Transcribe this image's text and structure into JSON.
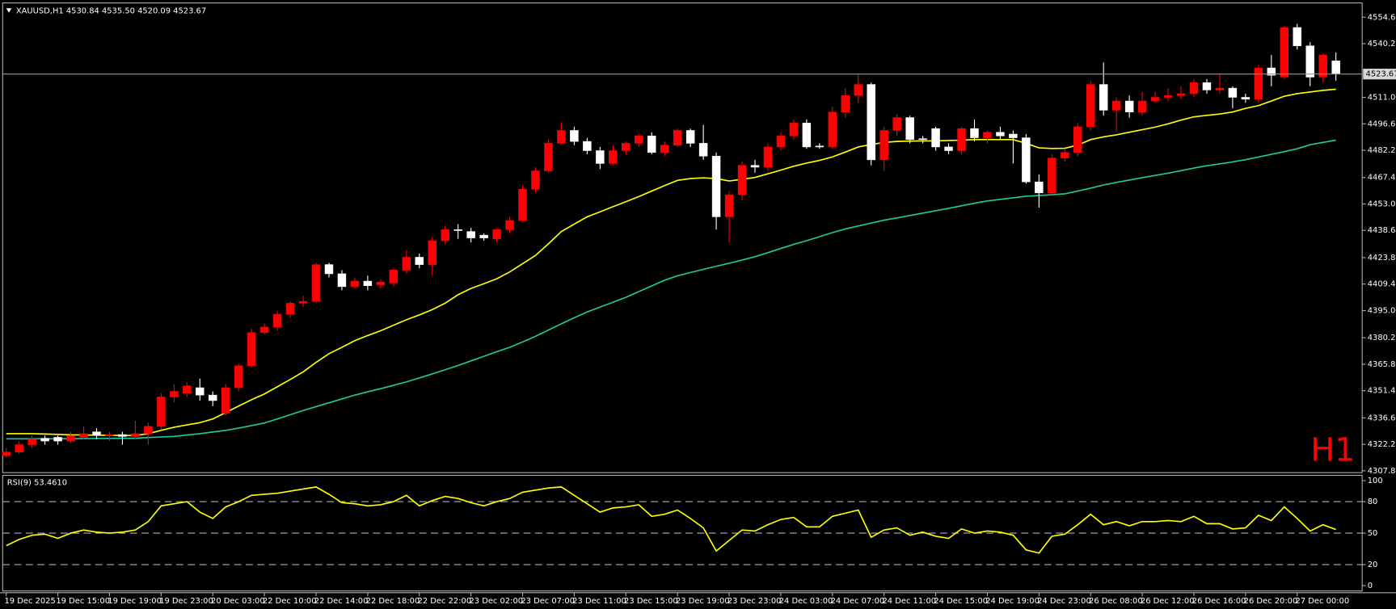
{
  "chart_data": [
    {
      "type": "candlestick",
      "title": "XAUUSD,H1  4530.84 4535.50 4520.09 4523.67",
      "watermark": "H1",
      "up_color": "#ff0000",
      "down_color": "#ffffff",
      "ylim": [
        4306.8,
        4561.4
      ],
      "yticks": [
        {
          "value": 4554.6,
          "label": "4554.60"
        },
        {
          "value": 4540.2,
          "label": "4540.20"
        },
        {
          "value": 4511.0,
          "label": "4511.00"
        },
        {
          "value": 4496.6,
          "label": "4496.60"
        },
        {
          "value": 4482.2,
          "label": "4482.20"
        },
        {
          "value": 4467.4,
          "label": "4467.40"
        },
        {
          "value": 4453.0,
          "label": "4453.00"
        },
        {
          "value": 4438.6,
          "label": "4438.60"
        },
        {
          "value": 4423.8,
          "label": "4423.80"
        },
        {
          "value": 4409.4,
          "label": "4409.40"
        },
        {
          "value": 4395.0,
          "label": "4395.00"
        },
        {
          "value": 4380.2,
          "label": "4380.20"
        },
        {
          "value": 4365.8,
          "label": "4365.80"
        },
        {
          "value": 4351.4,
          "label": "4351.40"
        },
        {
          "value": 4336.6,
          "label": "4336.60"
        },
        {
          "value": 4322.2,
          "label": "4322.20"
        },
        {
          "value": 4307.8,
          "label": "4307.80"
        }
      ],
      "price_line": {
        "value": 4523.67,
        "label": "4523.67",
        "color": "#8a9aa8"
      },
      "categories": [
        "19 Dec 2025",
        null,
        null,
        null,
        "19 Dec 15:00",
        null,
        null,
        null,
        "19 Dec 19:00",
        null,
        null,
        null,
        "19 Dec 23:00",
        null,
        null,
        null,
        "20 Dec 03:00",
        null,
        null,
        null,
        "22 Dec 10:00",
        null,
        null,
        null,
        "22 Dec 14:00",
        null,
        null,
        null,
        "22 Dec 18:00",
        null,
        null,
        null,
        "22 Dec 22:00",
        null,
        null,
        null,
        "23 Dec 02:00",
        null,
        null,
        null,
        "23 Dec 07:00",
        null,
        null,
        null,
        "23 Dec 11:00",
        null,
        null,
        null,
        "23 Dec 15:00",
        null,
        null,
        null,
        "23 Dec 19:00",
        null,
        null,
        null,
        "23 Dec 23:00",
        null,
        null,
        null,
        "24 Dec 03:00",
        null,
        null,
        null,
        "24 Dec 07:00",
        null,
        null,
        null,
        "24 Dec 11:00",
        null,
        null,
        null,
        "24 Dec 15:00",
        null,
        null,
        null,
        "24 Dec 19:00",
        null,
        null,
        null,
        "24 Dec 23:00",
        null,
        null,
        null,
        "26 Dec 08:00",
        null,
        null,
        null,
        "26 Dec 12:00",
        null,
        null,
        null,
        "26 Dec 16:00",
        null,
        null,
        null,
        "26 Dec 20:00",
        null,
        null,
        null,
        "27 Dec 00:00",
        null,
        null,
        null
      ],
      "candles": [
        [
          4316,
          4320,
          4315,
          4318
        ],
        [
          4318,
          4324,
          4317,
          4322
        ],
        [
          4322,
          4327,
          4320,
          4325
        ],
        [
          4325.5,
          4327,
          4322,
          4324
        ],
        [
          4326,
          4327,
          4322,
          4324
        ],
        [
          4324,
          4329,
          4323,
          4327
        ],
        [
          4326,
          4332,
          4325,
          4328
        ],
        [
          4329,
          4331,
          4325,
          4327
        ],
        [
          4327,
          4329,
          4324,
          4327.5
        ],
        [
          4327.5,
          4329,
          4322,
          4326.5
        ],
        [
          4326.5,
          4335,
          4325,
          4328
        ],
        [
          4328,
          4334,
          4322,
          4332
        ],
        [
          4332,
          4350,
          4330,
          4348
        ],
        [
          4348,
          4355,
          4345,
          4351
        ],
        [
          4350,
          4356,
          4348,
          4354
        ],
        [
          4353,
          4358,
          4346,
          4349
        ],
        [
          4349,
          4351,
          4343,
          4346
        ],
        [
          4339,
          4355,
          4338,
          4353
        ],
        [
          4353,
          4366,
          4351,
          4365
        ],
        [
          4365,
          4385,
          4364,
          4383
        ],
        [
          4383,
          4388,
          4382,
          4386
        ],
        [
          4386,
          4395,
          4384,
          4393
        ],
        [
          4393,
          4400,
          4391,
          4399
        ],
        [
          4399,
          4403,
          4397,
          4400
        ],
        [
          4400,
          4421,
          4399,
          4420
        ],
        [
          4420,
          4421,
          4413,
          4415
        ],
        [
          4415,
          4417,
          4406,
          4408
        ],
        [
          4408,
          4413,
          4407,
          4411
        ],
        [
          4411,
          4414,
          4406,
          4408.5
        ],
        [
          4409,
          4412,
          4407,
          4410.5
        ],
        [
          4410,
          4418,
          4408,
          4417
        ],
        [
          4417,
          4428,
          4415,
          4424
        ],
        [
          4424,
          4426,
          4418,
          4420
        ],
        [
          4420,
          4435,
          4414,
          4433
        ],
        [
          4433,
          4441,
          4431,
          4439
        ],
        [
          4439,
          4442,
          4434,
          4438.5
        ],
        [
          4438,
          4440,
          4432,
          4434.5
        ],
        [
          4436,
          4437,
          4433,
          4434.5
        ],
        [
          4434,
          4440,
          4432,
          4439
        ],
        [
          4439,
          4446,
          4437,
          4444
        ],
        [
          4444,
          4463,
          4443,
          4461
        ],
        [
          4461,
          4473,
          4459,
          4471
        ],
        [
          4471,
          4488,
          4470,
          4486
        ],
        [
          4486,
          4497,
          4485,
          4493
        ],
        [
          4493,
          4495,
          4485,
          4487
        ],
        [
          4487,
          4489,
          4480,
          4482
        ],
        [
          4482,
          4484,
          4472,
          4475
        ],
        [
          4475,
          4485,
          4474,
          4482
        ],
        [
          4482,
          4487,
          4480,
          4486
        ],
        [
          4486,
          4491,
          4484,
          4490
        ],
        [
          4490,
          4492,
          4480,
          4481
        ],
        [
          4481,
          4487,
          4479,
          4485
        ],
        [
          4485,
          4494,
          4484,
          4493
        ],
        [
          4493,
          4494,
          4484,
          4486
        ],
        [
          4486,
          4496,
          4477,
          4479
        ],
        [
          4479,
          4481,
          4439,
          4446
        ],
        [
          4446,
          4460,
          4432,
          4458
        ],
        [
          4458,
          4476,
          4455,
          4474
        ],
        [
          4474,
          4477,
          4470,
          4473
        ],
        [
          4473,
          4486,
          4471,
          4484
        ],
        [
          4484,
          4492,
          4482,
          4490
        ],
        [
          4490,
          4499,
          4488,
          4497
        ],
        [
          4497,
          4499,
          4483,
          4484
        ],
        [
          4484.5,
          4486,
          4483,
          4484
        ],
        [
          4484,
          4506,
          4483,
          4503
        ],
        [
          4503,
          4516,
          4500,
          4512
        ],
        [
          4512,
          4524,
          4508,
          4518
        ],
        [
          4518,
          4519,
          4474,
          4477
        ],
        [
          4477,
          4495,
          4471,
          4493
        ],
        [
          4493,
          4502,
          4490,
          4500
        ],
        [
          4500,
          4501,
          4486,
          4488
        ],
        [
          4488.5,
          4490,
          4486,
          4488
        ],
        [
          4494,
          4495,
          4482,
          4484
        ],
        [
          4484,
          4486,
          4480,
          4482
        ],
        [
          4482,
          4495,
          4480,
          4494
        ],
        [
          4494,
          4499,
          4487,
          4489
        ],
        [
          4489,
          4493,
          4486,
          4492
        ],
        [
          4492,
          4495,
          4488,
          4490
        ],
        [
          4491,
          4493,
          4475,
          4489
        ],
        [
          4489,
          4491,
          4464,
          4465
        ],
        [
          4465,
          4469,
          4451,
          4459
        ],
        [
          4459,
          4480,
          4458,
          4478
        ],
        [
          4478,
          4483,
          4476,
          4481
        ],
        [
          4481,
          4497,
          4479,
          4495
        ],
        [
          4495,
          4520,
          4493,
          4518
        ],
        [
          4518,
          4530,
          4501,
          4504
        ],
        [
          4504,
          4511,
          4492,
          4509
        ],
        [
          4509,
          4512,
          4500,
          4503
        ],
        [
          4503,
          4514,
          4501,
          4509
        ],
        [
          4509,
          4514,
          4508,
          4511
        ],
        [
          4511,
          4516,
          4509,
          4512
        ],
        [
          4512,
          4517,
          4510,
          4513
        ],
        [
          4513,
          4521,
          4511,
          4519
        ],
        [
          4519,
          4521,
          4513,
          4515
        ],
        [
          4515,
          4524,
          4513,
          4516
        ],
        [
          4516,
          4517,
          4505,
          4511
        ],
        [
          4511,
          4513,
          4508,
          4510
        ],
        [
          4510,
          4529,
          4508,
          4527
        ],
        [
          4527,
          4534,
          4517,
          4523
        ],
        [
          4522,
          4550,
          4521,
          4549
        ],
        [
          4549,
          4551,
          4537,
          4539
        ],
        [
          4539,
          4541,
          4517,
          4522
        ],
        [
          4522,
          4535,
          4519,
          4534
        ],
        [
          4530.84,
          4535.5,
          4520.09,
          4523.67
        ]
      ],
      "overlays": [
        {
          "color": "#ffff00",
          "values": [
            4328,
            4328,
            4328,
            4327.8,
            4327.6,
            4327.4,
            4327.3,
            4327.2,
            4327.1,
            4327,
            4327,
            4328,
            4329.8,
            4331.5,
            4332.8,
            4334,
            4336,
            4339.5,
            4343,
            4346.5,
            4349.6,
            4353.5,
            4357.5,
            4361.6,
            4366.8,
            4371.5,
            4375,
            4378.6,
            4381.4,
            4384,
            4387,
            4390,
            4392.6,
            4395.5,
            4399,
            4403.6,
            4407,
            4409.6,
            4412.3,
            4416,
            4420.5,
            4425,
            4431.3,
            4438,
            4442,
            4446,
            4448.7,
            4451.5,
            4454.2,
            4457,
            4460,
            4463,
            4465.8,
            4466.8,
            4467.2,
            4466.8,
            4465.5,
            4466.4,
            4467.4,
            4469.4,
            4471.4,
            4473.5,
            4475.2,
            4476.7,
            4478.6,
            4481.2,
            4484,
            4485.3,
            4486.5,
            4487,
            4487.2,
            4487.3,
            4487.3,
            4487.5,
            4487.7,
            4488,
            4488,
            4488,
            4488,
            4486,
            4483.5,
            4483.2,
            4483.3,
            4485,
            4488,
            4489.5,
            4490.6,
            4492,
            4493.4,
            4494.8,
            4496.6,
            4498.6,
            4500.4,
            4501.2,
            4501.9,
            4503,
            4505,
            4506.5,
            4509,
            4511.6,
            4513,
            4513.9,
            4514.8,
            4515.4
          ]
        },
        {
          "color": "#20c8a0",
          "values": [
            4325.2,
            4325.2,
            4325.2,
            4325.2,
            4325.2,
            4325.3,
            4325.3,
            4325.4,
            4325.4,
            4325.5,
            4325.5,
            4325.9,
            4326.2,
            4326.5,
            4327.3,
            4328,
            4328.9,
            4329.8,
            4331,
            4332.4,
            4333.8,
            4336,
            4338.3,
            4340.6,
            4342.7,
            4344.8,
            4346.9,
            4349,
            4350.8,
            4352.5,
            4354.3,
            4356.2,
            4358.3,
            4360.5,
            4362.8,
            4365.1,
            4367.6,
            4370.1,
            4372.6,
            4375,
            4377.9,
            4381,
            4384.4,
            4387.8,
            4391.1,
            4394.2,
            4396.9,
            4399.5,
            4402.2,
            4405.3,
            4408.4,
            4411.5,
            4413.9,
            4415.7,
            4417.4,
            4419.1,
            4420.7,
            4422.5,
            4424.3,
            4426.5,
            4428.8,
            4431,
            4433,
            4435.2,
            4437.4,
            4439.4,
            4441,
            4442.6,
            4444.2,
            4445.4,
            4446.7,
            4448,
            4449.3,
            4450.6,
            4452,
            4453.4,
            4454.6,
            4455.5,
            4456.3,
            4457.2,
            4457.6,
            4458,
            4458.5,
            4460,
            4461.6,
            4463.3,
            4464.7,
            4466,
            4467.3,
            4468.5,
            4469.7,
            4471.1,
            4472.5,
            4473.8,
            4474.8,
            4475.9,
            4477.1,
            4478.5,
            4480,
            4481.5,
            4483,
            4485.2,
            4486.5,
            4487.7
          ]
        }
      ]
    },
    {
      "type": "line",
      "title": "RSI(9) 53.4610",
      "color": "#ffff00",
      "ylim": [
        -5.1,
        105.1
      ],
      "yticks": [
        100,
        80,
        50,
        20,
        0
      ],
      "levels": [
        80,
        50,
        20
      ],
      "values": [
        38,
        44,
        48,
        49,
        45,
        50,
        53,
        51,
        50,
        51,
        53,
        61,
        76,
        78,
        80,
        70,
        64,
        75,
        80,
        86,
        87,
        88,
        90,
        92,
        94,
        87,
        79,
        78,
        76,
        77,
        80,
        86,
        76,
        81,
        85,
        83,
        79,
        76,
        80,
        83,
        89,
        91,
        93,
        94,
        86,
        78,
        70,
        74,
        75,
        77,
        66,
        68,
        72,
        64,
        55,
        33,
        43,
        53,
        52,
        58,
        63,
        65,
        56,
        56,
        66,
        69,
        72,
        46,
        53,
        55,
        48,
        51,
        47,
        45,
        54,
        50,
        52,
        51,
        48,
        34,
        31,
        47,
        49,
        58,
        68,
        58,
        61,
        57,
        61,
        61,
        62,
        61,
        66,
        59,
        59,
        54,
        55,
        67,
        62,
        75,
        64,
        52,
        58,
        53.461
      ]
    }
  ]
}
